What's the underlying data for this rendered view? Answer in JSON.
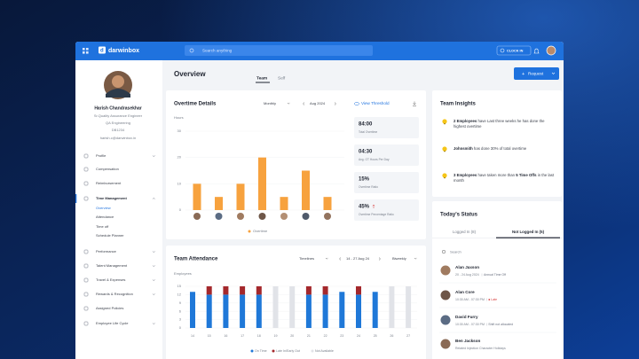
{
  "topbar": {
    "brand": "darwinbox",
    "search_placeholder": "Search anything",
    "clock_in": "CLOCK IN"
  },
  "profile": {
    "name": "Harish Chandrasekhar",
    "role": "Sr.Quality Assurance Engineer",
    "department": "QA Engineering",
    "employee_id": "DB1234",
    "email": "harish.c@darwinbox.in"
  },
  "menu": [
    {
      "label": "Profile",
      "expandable": true
    },
    {
      "label": "Compensation"
    },
    {
      "label": "Reimbursement"
    },
    {
      "label": "Time Management",
      "expandable": true,
      "active": true,
      "children": [
        "Overview",
        "Attendance",
        "Time off",
        "Schedule Planner"
      ]
    },
    {
      "label": "Performance",
      "expandable": true
    },
    {
      "label": "Talent Management",
      "expandable": true
    },
    {
      "label": "Travel & Expenses",
      "expandable": true
    },
    {
      "label": "Rewards & Recognition",
      "expandable": true
    },
    {
      "label": "Assigned Policies"
    },
    {
      "label": "Employee Life Cycle",
      "expandable": true
    }
  ],
  "page": {
    "title": "Overview",
    "tabs": [
      "Team",
      "Self"
    ],
    "active_tab": 0,
    "request_button": "Request"
  },
  "overtime_chart": {
    "type": "bar",
    "title": "Overtime Details",
    "period_mode": "Monthly",
    "period": "Aug 2024",
    "threshold_link": "View Threshold",
    "y_label": "Hours",
    "ylim": [
      0,
      30
    ],
    "yticks": [
      0,
      10,
      20,
      30
    ],
    "values": [
      10,
      5,
      10,
      20,
      5,
      15,
      5
    ],
    "color": "#f7a23e",
    "legend": "Overtime"
  },
  "overtime_stats": [
    {
      "value": "84:00",
      "label": "Total Overtime"
    },
    {
      "value": "04:30",
      "label": "Avg. OT Hours Per Day"
    },
    {
      "value": "15%",
      "label": "Overtime Ratio"
    },
    {
      "value": "45%",
      "label": "Overtime Percentage Ratio",
      "trend": "up"
    }
  ],
  "attendance_chart": {
    "type": "stacked_bar",
    "title": "Team Attendance",
    "view": "Timelines",
    "period": "14 - 27 Aug 24",
    "frequency": "Biweekly",
    "y_label": "Employees",
    "categories": [
      "14",
      "15",
      "16",
      "17",
      "18",
      "19",
      "20",
      "21",
      "22",
      "23",
      "24",
      "25",
      "26",
      "27"
    ],
    "ylim": [
      0,
      15
    ],
    "yticks": [
      0,
      3,
      6,
      9,
      12,
      15
    ],
    "series": [
      {
        "name": "On Time",
        "color": "#1f78d8",
        "values": [
          13,
          12,
          12,
          12,
          12,
          0,
          0,
          12,
          12,
          13,
          12,
          13,
          0,
          0
        ]
      },
      {
        "name": "Late In/Early Out",
        "color": "#a4282c",
        "values": [
          0,
          3,
          3,
          3,
          3,
          0,
          0,
          3,
          3,
          0,
          3,
          0,
          0,
          0
        ]
      },
      {
        "name": "Not Available",
        "color": "#e1e3e8",
        "values": [
          0,
          0,
          0,
          0,
          0,
          15,
          15,
          0,
          0,
          0,
          0,
          0,
          15,
          15
        ]
      }
    ]
  },
  "insights": {
    "title": "Team Insights",
    "items": [
      {
        "parts": [
          {
            "text": "2 Employees",
            "bold": true
          },
          {
            "text": " have Last three weeks he has done the highest overtime"
          }
        ]
      },
      {
        "parts": [
          {
            "text": "Johnsmith",
            "bold": true
          },
          {
            "text": " has done 30% of total overtime"
          }
        ]
      },
      {
        "parts": [
          {
            "text": "3 Employees",
            "bold": true
          },
          {
            "text": " have taken more than "
          },
          {
            "text": "5 Time Offs",
            "bold": true
          },
          {
            "text": " in the last month"
          }
        ]
      }
    ]
  },
  "status": {
    "title": "Today's Status",
    "tabs": [
      "Logged In (8)",
      "Not Logged In (5)"
    ],
    "active_tab": 1,
    "search_placeholder": "Search",
    "people": [
      {
        "name": "Alan Jaxson",
        "detail": "20 - 24 Aug 2024",
        "status": "Annual Time Off",
        "status_color": "#6b7180"
      },
      {
        "name": "Alan Core",
        "detail": "10:30 AM - 07:30 PM",
        "status": "Late",
        "status_color": "#d63a3a"
      },
      {
        "name": "David Furry",
        "detail": "10:30 AM - 07:30 PM",
        "status": "Shift not allocated",
        "status_color": "#6b7180"
      },
      {
        "name": "Ben Jackson",
        "detail": "Related Injection Character Holidays",
        "status_color": "#6b7180"
      }
    ]
  }
}
